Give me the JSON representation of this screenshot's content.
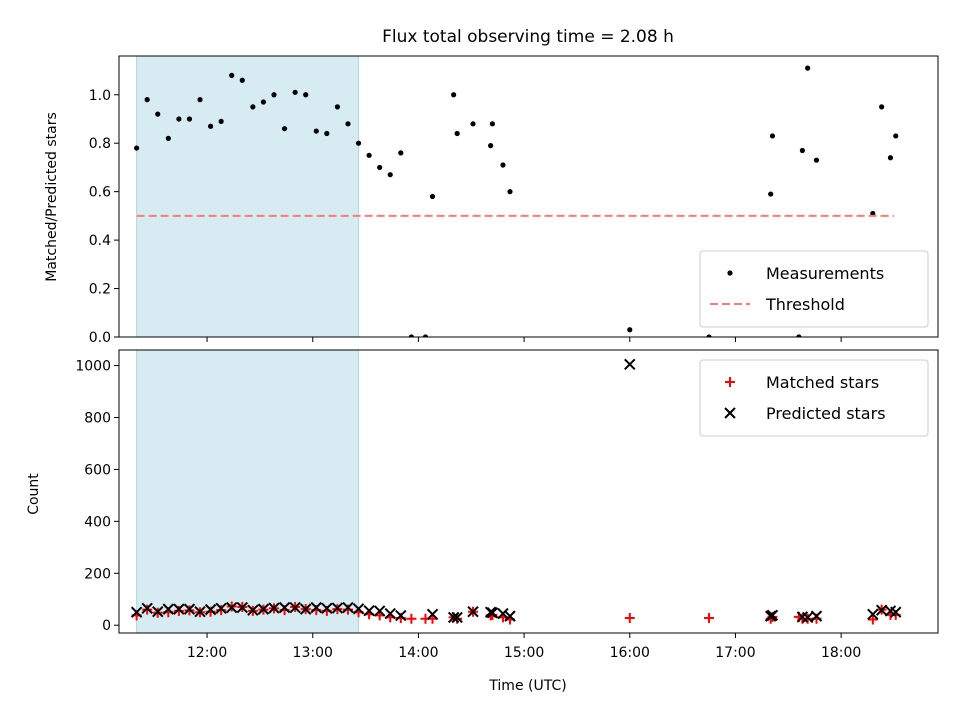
{
  "chart_data": [
    {
      "type": "scatter",
      "title": "Flux total observing time = 2.08 h",
      "xlabel": "",
      "ylabel": "Matched/Predicted stars",
      "xlim": [
        "11:10",
        "18:55"
      ],
      "ylim": [
        0,
        1.16
      ],
      "yticks": [
        "0.0",
        "0.2",
        "0.4",
        "0.6",
        "0.8",
        "1.0"
      ],
      "shaded_interval": [
        "11:20",
        "13:26"
      ],
      "legend_position": "lower-right",
      "series": [
        {
          "name": "Measurements",
          "marker": "dot",
          "color": "#000000",
          "points": [
            [
              "11:20",
              0.78
            ],
            [
              "11:26",
              0.98
            ],
            [
              "11:32",
              0.92
            ],
            [
              "11:38",
              0.82
            ],
            [
              "11:44",
              0.9
            ],
            [
              "11:50",
              0.9
            ],
            [
              "11:56",
              0.98
            ],
            [
              "12:02",
              0.87
            ],
            [
              "12:08",
              0.89
            ],
            [
              "12:14",
              1.08
            ],
            [
              "12:20",
              1.06
            ],
            [
              "12:26",
              0.95
            ],
            [
              "12:32",
              0.97
            ],
            [
              "12:38",
              1.0
            ],
            [
              "12:44",
              0.86
            ],
            [
              "12:50",
              1.01
            ],
            [
              "12:56",
              1.0
            ],
            [
              "13:02",
              0.85
            ],
            [
              "13:08",
              0.84
            ],
            [
              "13:14",
              0.95
            ],
            [
              "13:20",
              0.88
            ],
            [
              "13:26",
              0.8
            ],
            [
              "13:32",
              0.75
            ],
            [
              "13:38",
              0.7
            ],
            [
              "13:44",
              0.67
            ],
            [
              "13:50",
              0.76
            ],
            [
              "13:56",
              0.0
            ],
            [
              "14:04",
              0.0
            ],
            [
              "14:08",
              0.58
            ],
            [
              "14:20",
              1.0
            ],
            [
              "14:22",
              0.84
            ],
            [
              "14:31",
              0.88
            ],
            [
              "14:41",
              0.79
            ],
            [
              "14:42",
              0.88
            ],
            [
              "14:48",
              0.71
            ],
            [
              "14:52",
              0.6
            ],
            [
              "16:00",
              0.03
            ],
            [
              "16:45",
              0.0
            ],
            [
              "17:20",
              0.59
            ],
            [
              "17:21",
              0.83
            ],
            [
              "17:36",
              0.0
            ],
            [
              "17:38",
              0.77
            ],
            [
              "17:41",
              1.11
            ],
            [
              "17:46",
              0.73
            ],
            [
              "18:18",
              0.51
            ],
            [
              "18:23",
              0.95
            ],
            [
              "18:28",
              0.74
            ],
            [
              "18:31",
              0.83
            ]
          ]
        },
        {
          "name": "Threshold",
          "type": "line",
          "style": "dashed",
          "color": "#ff7b7b",
          "x": [
            "11:20",
            "18:30"
          ],
          "y": 0.5
        }
      ]
    },
    {
      "type": "scatter",
      "title": "",
      "xlabel": "Time (UTC)",
      "ylabel": "Count",
      "xlim": [
        "11:10",
        "18:55"
      ],
      "ylim": [
        -30,
        1060
      ],
      "yticks": [
        "0",
        "200",
        "400",
        "600",
        "800",
        "1000"
      ],
      "xticks": [
        "12:00",
        "13:00",
        "14:00",
        "15:00",
        "16:00",
        "17:00",
        "18:00"
      ],
      "shaded_interval": [
        "11:20",
        "13:26"
      ],
      "legend_position": "upper-right",
      "series": [
        {
          "name": "Matched stars",
          "marker": "plus",
          "color": "#ff0000",
          "points": [
            [
              "11:20",
              38
            ],
            [
              "11:26",
              60
            ],
            [
              "11:32",
              48
            ],
            [
              "11:38",
              50
            ],
            [
              "11:44",
              55
            ],
            [
              "11:50",
              57
            ],
            [
              "11:56",
              50
            ],
            [
              "12:02",
              52
            ],
            [
              "12:08",
              58
            ],
            [
              "12:14",
              72
            ],
            [
              "12:20",
              70
            ],
            [
              "12:26",
              55
            ],
            [
              "12:32",
              60
            ],
            [
              "12:38",
              65
            ],
            [
              "12:44",
              58
            ],
            [
              "12:50",
              70
            ],
            [
              "12:56",
              62
            ],
            [
              "13:02",
              58
            ],
            [
              "13:08",
              55
            ],
            [
              "13:14",
              62
            ],
            [
              "13:20",
              60
            ],
            [
              "13:26",
              50
            ],
            [
              "13:32",
              42
            ],
            [
              "13:38",
              38
            ],
            [
              "13:44",
              30
            ],
            [
              "13:50",
              28
            ],
            [
              "13:56",
              25
            ],
            [
              "14:04",
              25
            ],
            [
              "14:08",
              25
            ],
            [
              "14:20",
              30
            ],
            [
              "14:22",
              25
            ],
            [
              "14:31",
              52
            ],
            [
              "14:41",
              38
            ],
            [
              "14:42",
              40
            ],
            [
              "14:48",
              30
            ],
            [
              "14:52",
              22
            ],
            [
              "16:00",
              28
            ],
            [
              "16:45",
              28
            ],
            [
              "17:20",
              25
            ],
            [
              "17:21",
              32
            ],
            [
              "17:36",
              32
            ],
            [
              "17:38",
              25
            ],
            [
              "17:41",
              25
            ],
            [
              "17:46",
              25
            ],
            [
              "18:18",
              22
            ],
            [
              "18:23",
              60
            ],
            [
              "18:28",
              40
            ],
            [
              "18:31",
              40
            ]
          ]
        },
        {
          "name": "Predicted stars",
          "marker": "x",
          "color": "#000000",
          "points": [
            [
              "11:20",
              50
            ],
            [
              "11:26",
              65
            ],
            [
              "11:32",
              52
            ],
            [
              "11:38",
              62
            ],
            [
              "11:44",
              62
            ],
            [
              "11:50",
              62
            ],
            [
              "11:56",
              52
            ],
            [
              "12:02",
              60
            ],
            [
              "12:08",
              65
            ],
            [
              "12:14",
              68
            ],
            [
              "12:20",
              68
            ],
            [
              "12:26",
              58
            ],
            [
              "12:32",
              62
            ],
            [
              "12:38",
              66
            ],
            [
              "12:44",
              68
            ],
            [
              "12:50",
              68
            ],
            [
              "12:56",
              62
            ],
            [
              "13:02",
              68
            ],
            [
              "13:08",
              65
            ],
            [
              "13:14",
              66
            ],
            [
              "13:20",
              68
            ],
            [
              "13:26",
              63
            ],
            [
              "13:32",
              56
            ],
            [
              "13:38",
              55
            ],
            [
              "13:44",
              45
            ],
            [
              "13:50",
              37
            ],
            [
              "14:08",
              42
            ],
            [
              "14:20",
              30
            ],
            [
              "14:22",
              30
            ],
            [
              "14:31",
              52
            ],
            [
              "14:41",
              50
            ],
            [
              "14:42",
              48
            ],
            [
              "14:48",
              45
            ],
            [
              "14:52",
              35
            ],
            [
              "16:00",
              1005
            ],
            [
              "17:20",
              35
            ],
            [
              "17:21",
              38
            ],
            [
              "17:38",
              32
            ],
            [
              "17:41",
              30
            ],
            [
              "17:46",
              35
            ],
            [
              "18:18",
              42
            ],
            [
              "18:23",
              58
            ],
            [
              "18:28",
              55
            ],
            [
              "18:31",
              50
            ]
          ]
        }
      ]
    }
  ]
}
